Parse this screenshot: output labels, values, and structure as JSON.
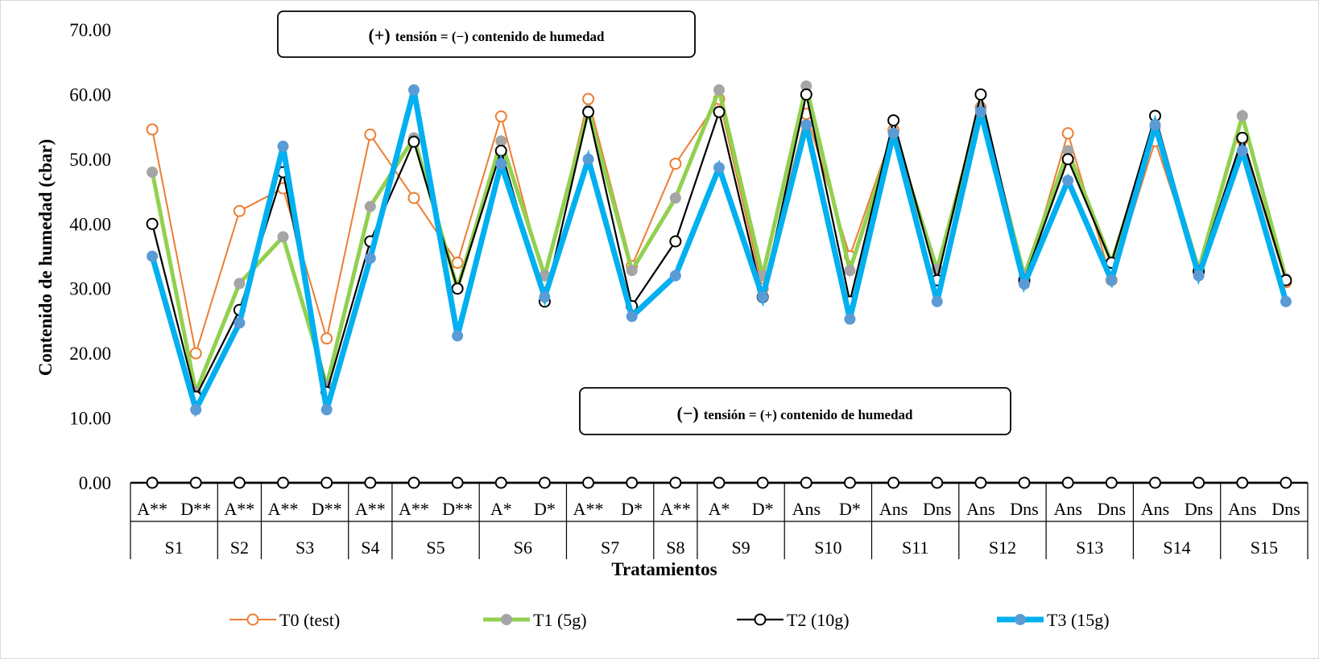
{
  "chart_data": {
    "type": "line",
    "title": "",
    "xlabel": "Tratamientos",
    "ylabel": "Contenido de humedad (cbar)",
    "ylim": [
      0,
      70
    ],
    "yticks": [
      "0.00",
      "10.00",
      "20.00",
      "30.00",
      "40.00",
      "50.00",
      "60.00",
      "70.00"
    ],
    "grid": false,
    "legend_position": "bottom",
    "categories": [
      "A**",
      "D**",
      "A**",
      "A**",
      "D**",
      "A**",
      "A**",
      "D**",
      "A*",
      "D*",
      "A**",
      "D*",
      "A**",
      "A*",
      "D*",
      "Ans",
      "D*",
      "Ans",
      "Dns",
      "Ans",
      "Dns",
      "Ans",
      "Dns",
      "Ans",
      "Dns",
      "Ans",
      "Dns"
    ],
    "groups": [
      {
        "label": "S1",
        "count": 2
      },
      {
        "label": "S2",
        "count": 1
      },
      {
        "label": "S3",
        "count": 2
      },
      {
        "label": "S4",
        "count": 1
      },
      {
        "label": "S5",
        "count": 2
      },
      {
        "label": "S6",
        "count": 2
      },
      {
        "label": "S7",
        "count": 2
      },
      {
        "label": "S8",
        "count": 1
      },
      {
        "label": "S9",
        "count": 2
      },
      {
        "label": "S10",
        "count": 2
      },
      {
        "label": "S11",
        "count": 2
      },
      {
        "label": "S12",
        "count": 2
      },
      {
        "label": "S13",
        "count": 2
      },
      {
        "label": "S14",
        "count": 2
      },
      {
        "label": "S15",
        "count": 2
      }
    ],
    "series": [
      {
        "name": "T0 (test)",
        "color": "#ED7D31",
        "marker": "open-circle",
        "values": [
          54.6,
          20.0,
          42.0,
          45.5,
          22.3,
          53.8,
          44.0,
          34.0,
          56.6,
          31.0,
          59.3,
          33.5,
          49.3,
          59.3,
          30.0,
          57.0,
          35.0,
          54.5,
          32.0,
          58.0,
          31.0,
          54.0,
          31.3,
          52.8,
          32.5,
          53.0,
          31.0
        ]
      },
      {
        "name": "T1 (5g)",
        "color": "#92D050",
        "marker": "grey-circle",
        "values": [
          48.0,
          14.0,
          30.8,
          38.0,
          15.0,
          42.7,
          53.3,
          30.0,
          52.8,
          32.0,
          57.5,
          32.8,
          44.0,
          60.7,
          32.0,
          61.3,
          32.8,
          54.0,
          33.0,
          58.0,
          32.0,
          51.3,
          34.0,
          55.0,
          33.0,
          56.7,
          31.5
        ]
      },
      {
        "name": "T2 (10g)",
        "color": "#000000",
        "marker": "open-circle",
        "values": [
          40.0,
          13.3,
          26.7,
          48.0,
          14.0,
          37.3,
          52.7,
          30.0,
          51.3,
          28.0,
          57.3,
          27.3,
          37.3,
          57.3,
          28.7,
          60.0,
          28.0,
          56.0,
          31.3,
          60.0,
          31.3,
          50.0,
          34.0,
          56.7,
          32.7,
          53.3,
          31.3
        ]
      },
      {
        "name": "T3 (15g)",
        "color": "#00B0F0",
        "marker": "blue-circle",
        "values": [
          35.0,
          11.3,
          24.7,
          52.0,
          11.3,
          34.7,
          60.7,
          22.7,
          49.3,
          28.7,
          50.0,
          25.7,
          32.0,
          48.7,
          28.7,
          55.3,
          25.3,
          54.0,
          28.0,
          57.3,
          30.7,
          46.7,
          31.3,
          55.3,
          32.0,
          51.3,
          28.0
        ]
      },
      {
        "name": "",
        "color": "#000000",
        "marker": "open-circle",
        "values": [
          0,
          0,
          0,
          0,
          0,
          0,
          0,
          0,
          0,
          0,
          0,
          0,
          0,
          0,
          0,
          0,
          0,
          0,
          0,
          0,
          0,
          0,
          0,
          0,
          0,
          0,
          0
        ]
      }
    ],
    "annotations": [
      {
        "prefix": "(+)",
        "text": "tensión =  (−) contenido de humedad"
      },
      {
        "prefix": "(−)",
        "text": "tensión = (+) contenido de humedad"
      }
    ]
  }
}
